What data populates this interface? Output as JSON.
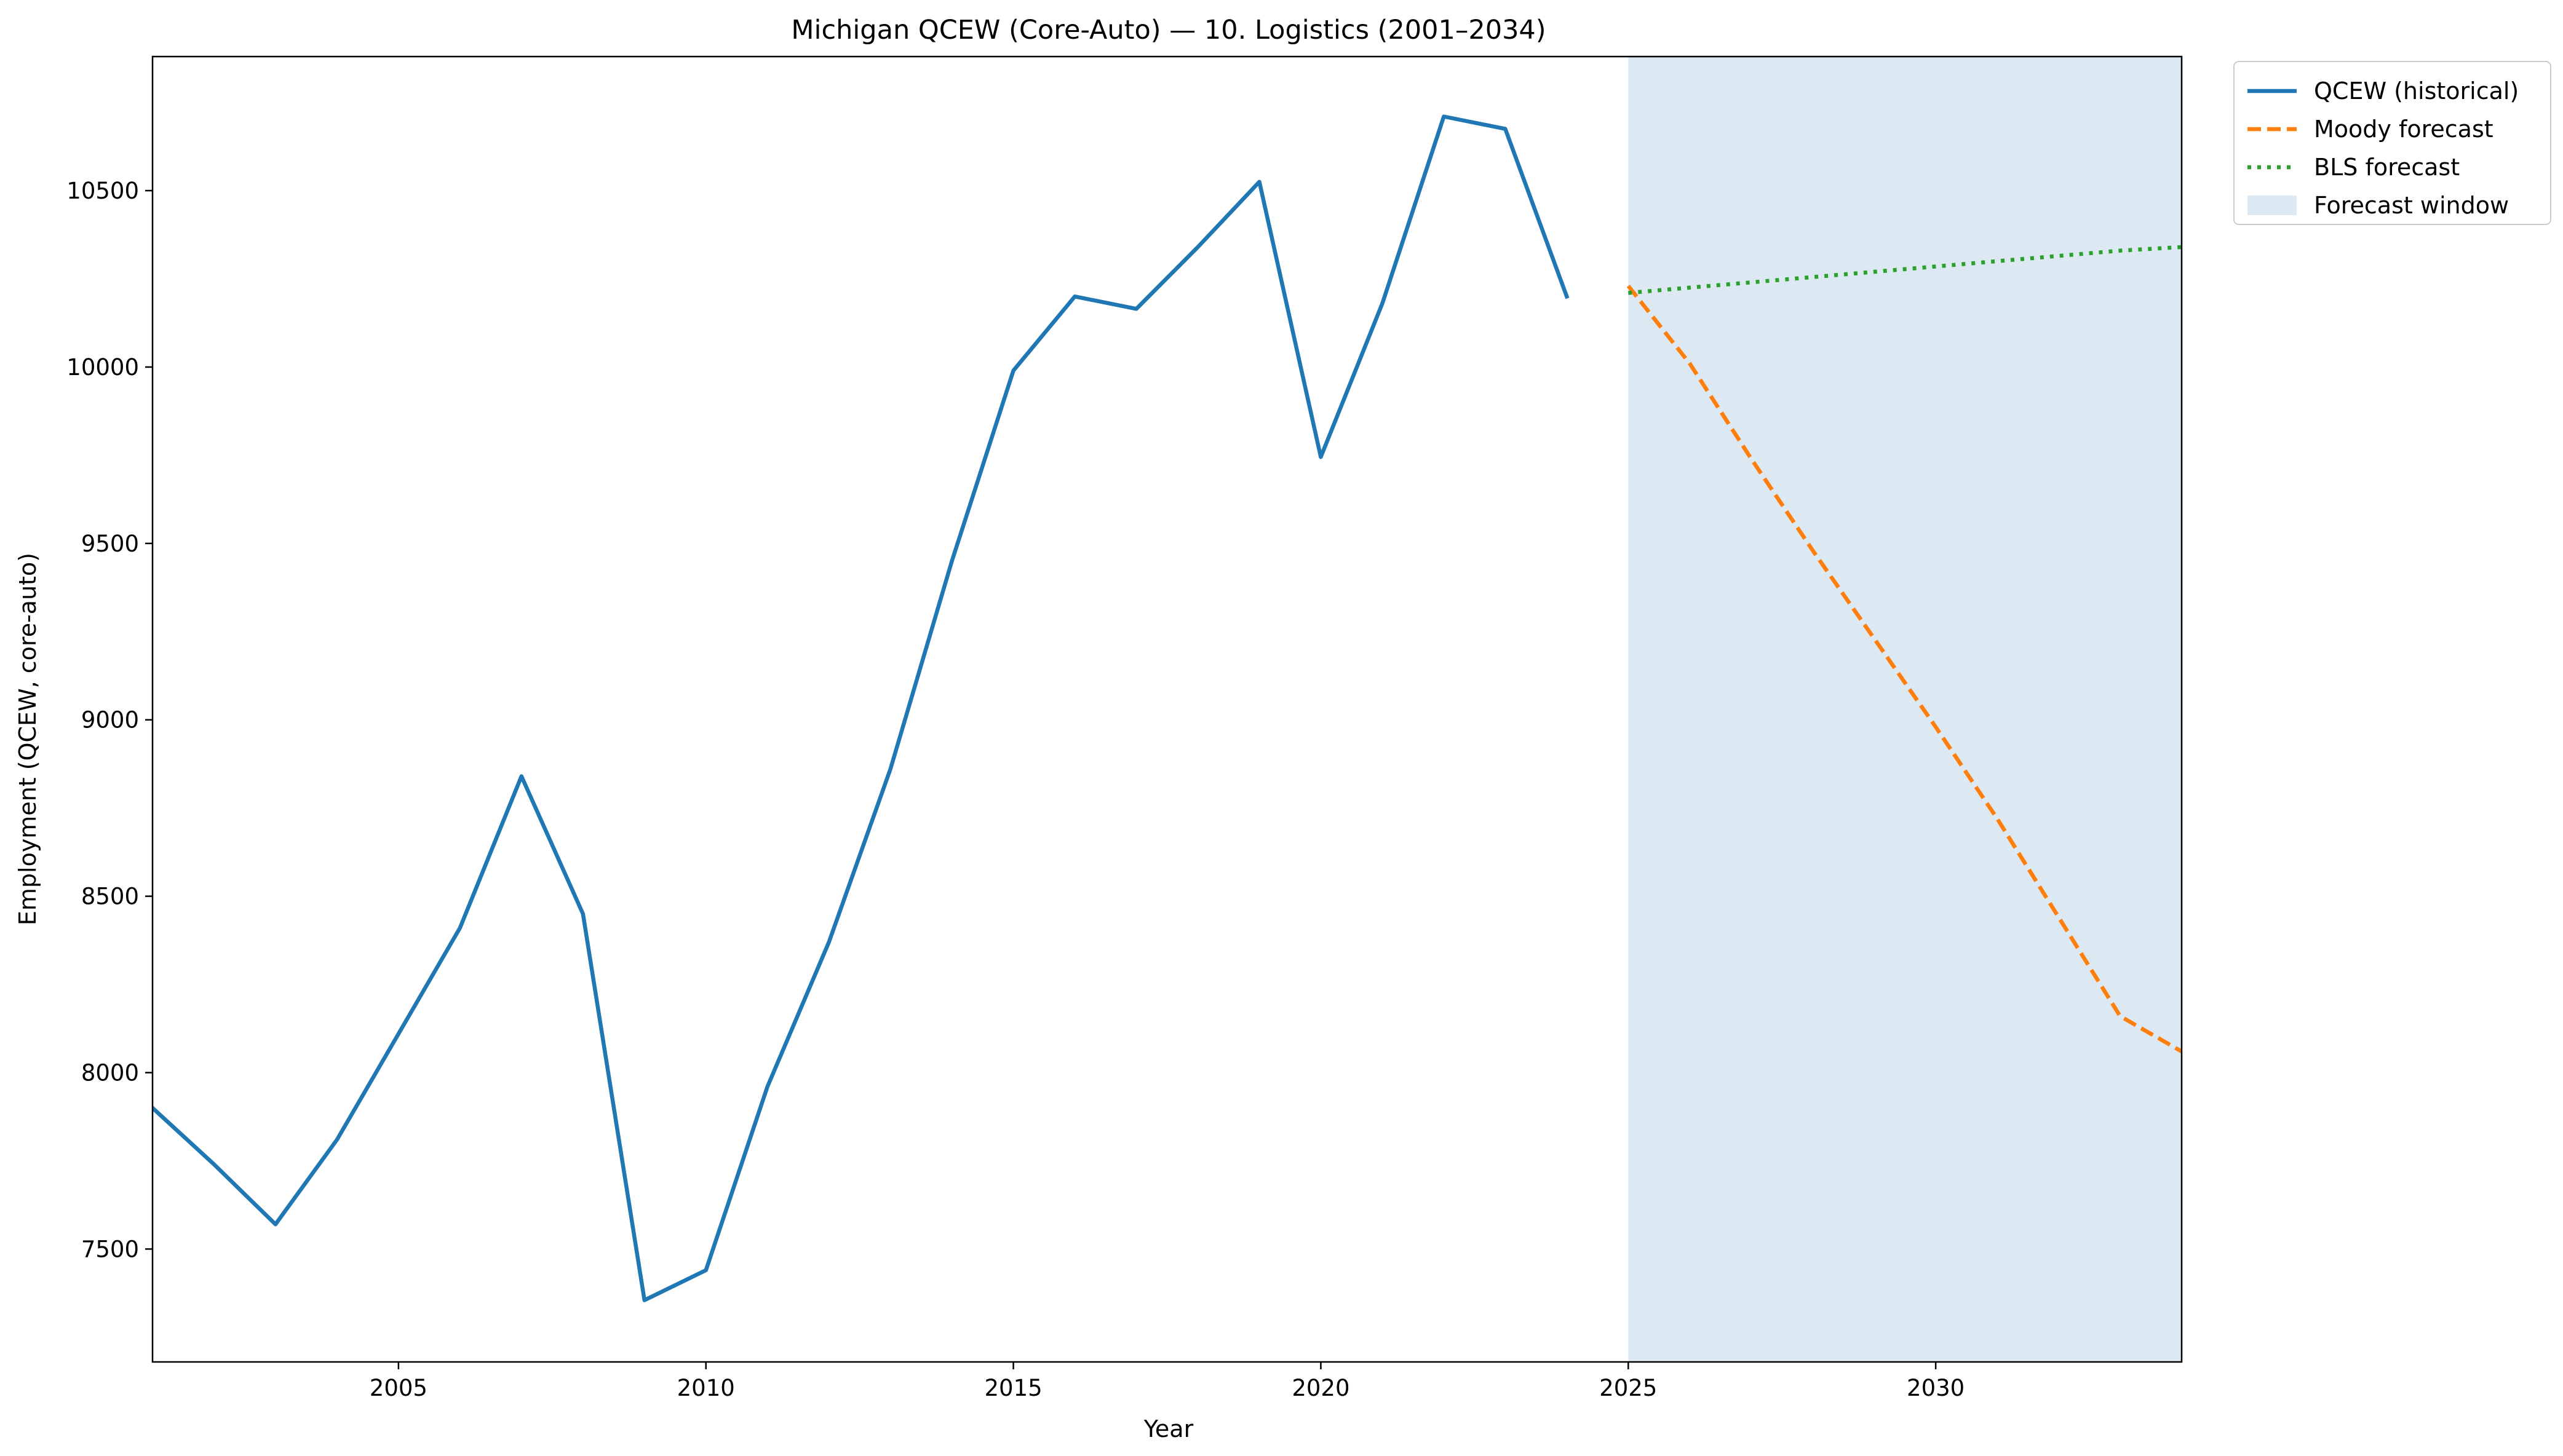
{
  "chart_data": {
    "type": "line",
    "title": "Michigan QCEW (Core-Auto) — 10. Logistics (2001–2034)",
    "xlabel": "Year",
    "ylabel": "Employment (QCEW, core-auto)",
    "xlim": [
      2001,
      2034
    ],
    "ylim": [
      7180,
      10880
    ],
    "xticks": [
      2005,
      2010,
      2015,
      2020,
      2025,
      2030
    ],
    "yticks": [
      7500,
      8000,
      8500,
      9000,
      9500,
      10000,
      10500
    ],
    "grid": false,
    "legend_position": "outside-top-right",
    "forecast_window": {
      "label": "Forecast window",
      "x_start": 2025,
      "x_end": 2034,
      "color": "#dce9f2"
    },
    "series": [
      {
        "name": "QCEW (historical)",
        "style": "solid",
        "color": "#1f77b4",
        "x": [
          2001,
          2002,
          2003,
          2004,
          2005,
          2006,
          2007,
          2008,
          2009,
          2010,
          2011,
          2012,
          2013,
          2014,
          2015,
          2016,
          2017,
          2018,
          2019,
          2020,
          2021,
          2022,
          2023,
          2024
        ],
        "y": [
          7900,
          7740,
          7570,
          7810,
          8110,
          8410,
          8840,
          8450,
          7355,
          7440,
          7960,
          8370,
          8860,
          9450,
          9990,
          10200,
          10165,
          10340,
          10525,
          9745,
          10180,
          10710,
          10675,
          10200
        ]
      },
      {
        "name": "Moody forecast",
        "style": "dashed",
        "color": "#ff7f0e",
        "x": [
          2025,
          2026,
          2027,
          2028,
          2029,
          2030,
          2031,
          2032,
          2033,
          2034
        ],
        "y": [
          10230,
          10010,
          9740,
          9480,
          9230,
          8980,
          8720,
          8440,
          8160,
          8060
        ]
      },
      {
        "name": "BLS forecast",
        "style": "dotted",
        "color": "#2ca02c",
        "x": [
          2025,
          2026,
          2027,
          2028,
          2029,
          2030,
          2031,
          2032,
          2033,
          2034
        ],
        "y": [
          10210,
          10225,
          10240,
          10255,
          10270,
          10285,
          10300,
          10315,
          10330,
          10340
        ]
      }
    ]
  }
}
